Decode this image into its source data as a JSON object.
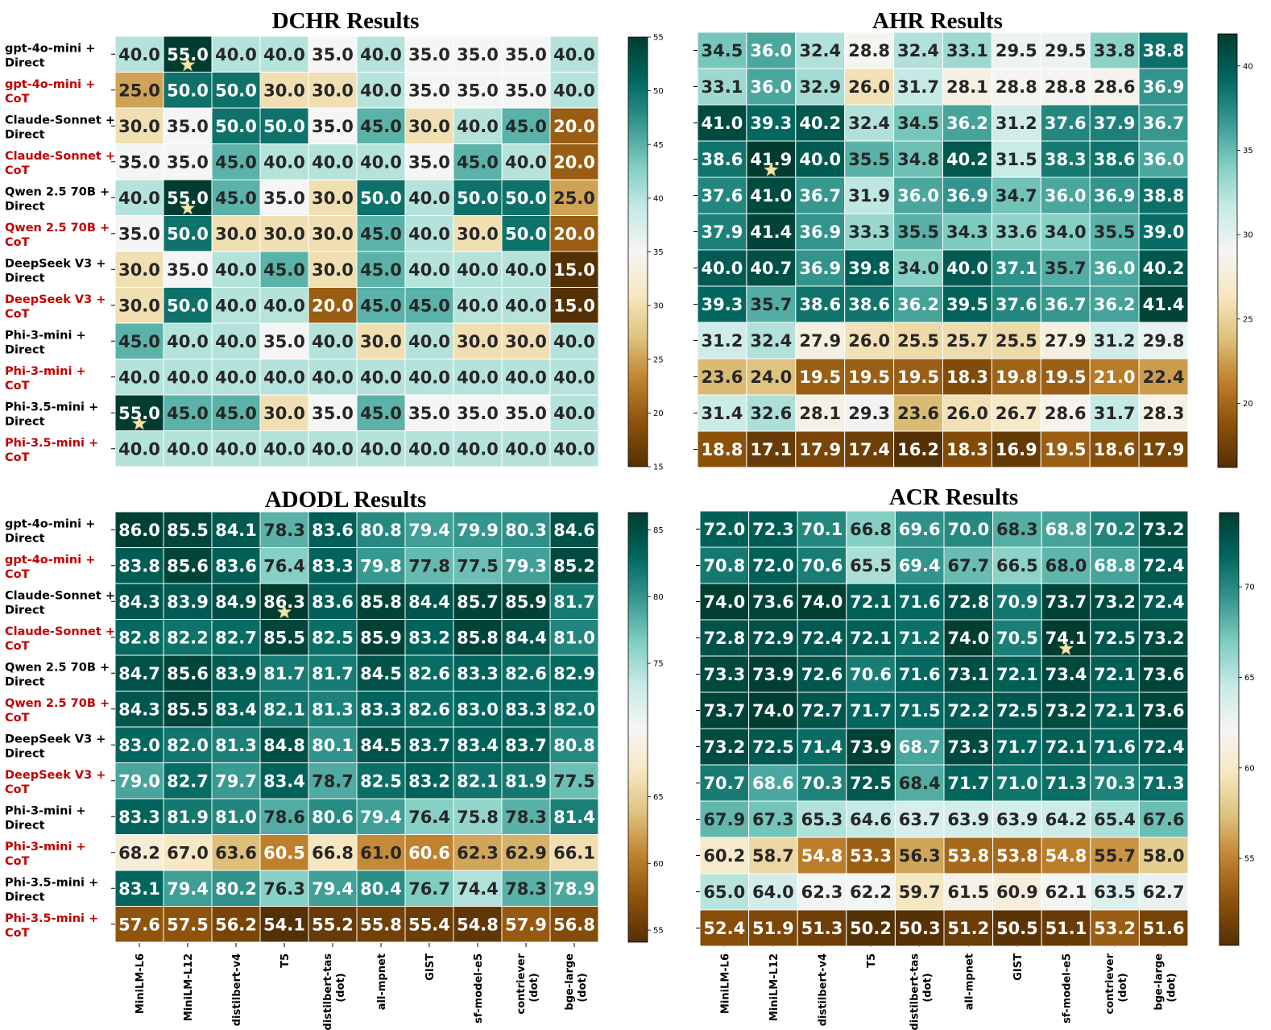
{
  "figure": {
    "row_labels": [
      {
        "line1": "gpt-4o-mini +",
        "line2": "Direct",
        "color": "#000000"
      },
      {
        "line1": "gpt-4o-mini +",
        "line2": "CoT",
        "color": "#c00000"
      },
      {
        "line1": "Claude-Sonnet +",
        "line2": "Direct",
        "color": "#000000"
      },
      {
        "line1": "Claude-Sonnet +",
        "line2": "CoT",
        "color": "#c00000"
      },
      {
        "line1": "Qwen 2.5 70B +",
        "line2": "Direct",
        "color": "#000000"
      },
      {
        "line1": "Qwen 2.5 70B +",
        "line2": "CoT",
        "color": "#c00000"
      },
      {
        "line1": "DeepSeek V3 +",
        "line2": "Direct",
        "color": "#000000"
      },
      {
        "line1": "DeepSeek V3 +",
        "line2": "CoT",
        "color": "#c00000"
      },
      {
        "line1": "Phi-3-mini +",
        "line2": "Direct",
        "color": "#000000"
      },
      {
        "line1": "Phi-3-mini +",
        "line2": "CoT",
        "color": "#c00000"
      },
      {
        "line1": "Phi-3.5-mini +",
        "line2": "Direct",
        "color": "#000000"
      },
      {
        "line1": "Phi-3.5-mini +",
        "line2": "CoT",
        "color": "#c00000"
      }
    ],
    "column_labels": [
      {
        "line1": "MiniLM-L6",
        "line2": ""
      },
      {
        "line1": "MiniLM-L12",
        "line2": ""
      },
      {
        "line1": "distilbert-v4",
        "line2": ""
      },
      {
        "line1": "T5",
        "line2": ""
      },
      {
        "line1": "distilbert-tas",
        "line2": "(dot)"
      },
      {
        "line1": "all-mpnet",
        "line2": ""
      },
      {
        "line1": "GIST",
        "line2": ""
      },
      {
        "line1": "sf-model-e5",
        "line2": ""
      },
      {
        "line1": "contriever",
        "line2": "(dot)"
      },
      {
        "line1": "bge-large",
        "line2": "(dot)"
      }
    ],
    "colormap": [
      "#543005",
      "#8c510a",
      "#bf812d",
      "#dfc27d",
      "#f6e8c3",
      "#f5f5f5",
      "#c7eae5",
      "#80cdc1",
      "#35978f",
      "#01665e",
      "#003c30"
    ]
  },
  "chart_data": [
    {
      "type": "heatmap",
      "title": "DCHR Results",
      "colorbar": {
        "min": 15,
        "max": 55,
        "ticks": [
          15,
          20,
          25,
          30,
          35,
          40,
          45,
          50,
          55
        ]
      },
      "values": [
        [
          40.0,
          55.0,
          40.0,
          40.0,
          35.0,
          40.0,
          35.0,
          35.0,
          35.0,
          40.0
        ],
        [
          25.0,
          50.0,
          50.0,
          30.0,
          30.0,
          40.0,
          35.0,
          35.0,
          35.0,
          40.0
        ],
        [
          30.0,
          35.0,
          50.0,
          50.0,
          35.0,
          45.0,
          30.0,
          40.0,
          45.0,
          20.0
        ],
        [
          35.0,
          35.0,
          45.0,
          40.0,
          40.0,
          40.0,
          35.0,
          45.0,
          40.0,
          20.0
        ],
        [
          40.0,
          55.0,
          45.0,
          35.0,
          30.0,
          50.0,
          40.0,
          50.0,
          50.0,
          25.0
        ],
        [
          35.0,
          50.0,
          30.0,
          30.0,
          30.0,
          45.0,
          40.0,
          30.0,
          50.0,
          20.0
        ],
        [
          30.0,
          35.0,
          40.0,
          45.0,
          30.0,
          45.0,
          40.0,
          40.0,
          40.0,
          15.0
        ],
        [
          30.0,
          50.0,
          40.0,
          40.0,
          20.0,
          45.0,
          45.0,
          40.0,
          40.0,
          15.0
        ],
        [
          45.0,
          40.0,
          40.0,
          35.0,
          40.0,
          30.0,
          40.0,
          30.0,
          30.0,
          40.0
        ],
        [
          40.0,
          40.0,
          40.0,
          40.0,
          40.0,
          40.0,
          40.0,
          40.0,
          40.0,
          40.0
        ],
        [
          55.0,
          45.0,
          45.0,
          30.0,
          35.0,
          45.0,
          35.0,
          35.0,
          35.0,
          40.0
        ],
        [
          40.0,
          40.0,
          40.0,
          40.0,
          40.0,
          40.0,
          40.0,
          40.0,
          40.0,
          40.0
        ]
      ],
      "stars": [
        [
          0,
          1
        ],
        [
          4,
          1
        ],
        [
          10,
          0
        ]
      ]
    },
    {
      "type": "heatmap",
      "title": "AHR Results",
      "colorbar": {
        "min": 16.2,
        "max": 41.9,
        "ticks": [
          20,
          25,
          30,
          35,
          40
        ]
      },
      "values": [
        [
          34.5,
          36.0,
          32.4,
          28.8,
          32.4,
          33.1,
          29.5,
          29.5,
          33.8,
          38.8
        ],
        [
          33.1,
          36.0,
          32.9,
          26.0,
          31.7,
          28.1,
          28.8,
          28.8,
          28.6,
          36.9
        ],
        [
          41.0,
          39.3,
          40.2,
          32.4,
          34.5,
          36.2,
          31.2,
          37.6,
          37.9,
          36.7
        ],
        [
          38.6,
          41.9,
          40.0,
          35.5,
          34.8,
          40.2,
          31.5,
          38.3,
          38.6,
          36.0
        ],
        [
          37.6,
          41.0,
          36.7,
          31.9,
          36.0,
          36.9,
          34.7,
          36.0,
          36.9,
          38.8
        ],
        [
          37.9,
          41.4,
          36.9,
          33.3,
          35.5,
          34.3,
          33.6,
          34.0,
          35.5,
          39.0
        ],
        [
          40.0,
          40.7,
          36.9,
          39.8,
          34.0,
          40.0,
          37.1,
          35.7,
          36.0,
          40.2
        ],
        [
          39.3,
          35.7,
          38.6,
          38.6,
          36.2,
          39.5,
          37.6,
          36.7,
          36.2,
          41.4
        ],
        [
          31.2,
          32.4,
          27.9,
          26.0,
          25.5,
          25.7,
          25.5,
          27.9,
          31.2,
          29.8
        ],
        [
          23.6,
          24.0,
          19.5,
          19.5,
          19.5,
          18.3,
          19.8,
          19.5,
          21.0,
          22.4
        ],
        [
          31.4,
          32.6,
          28.1,
          29.3,
          23.6,
          26.0,
          26.7,
          28.6,
          31.7,
          28.3
        ],
        [
          18.8,
          17.1,
          17.9,
          17.4,
          16.2,
          18.3,
          16.9,
          19.5,
          18.6,
          17.9
        ]
      ],
      "stars": [
        [
          3,
          1
        ]
      ]
    },
    {
      "type": "heatmap",
      "title": "ADODL Results",
      "colorbar": {
        "min": 54.1,
        "max": 86.3,
        "ticks": [
          55,
          60,
          65,
          75,
          80,
          85
        ]
      },
      "values": [
        [
          86.0,
          85.5,
          84.1,
          78.3,
          83.6,
          80.8,
          79.4,
          79.9,
          80.3,
          84.6
        ],
        [
          83.8,
          85.6,
          83.6,
          76.4,
          83.3,
          79.8,
          77.8,
          77.5,
          79.3,
          85.2
        ],
        [
          84.3,
          83.9,
          84.9,
          86.3,
          83.6,
          85.8,
          84.4,
          85.7,
          85.9,
          81.7
        ],
        [
          82.8,
          82.2,
          82.7,
          85.5,
          82.5,
          85.9,
          83.2,
          85.8,
          84.4,
          81.0
        ],
        [
          84.7,
          85.6,
          83.9,
          81.7,
          81.7,
          84.5,
          82.6,
          83.3,
          82.6,
          82.9
        ],
        [
          84.3,
          85.5,
          83.4,
          82.1,
          81.3,
          83.3,
          82.6,
          83.0,
          83.3,
          82.0
        ],
        [
          83.0,
          82.0,
          81.3,
          84.8,
          80.1,
          84.5,
          83.7,
          83.4,
          83.7,
          80.8
        ],
        [
          79.0,
          82.7,
          79.7,
          83.4,
          78.7,
          82.5,
          83.2,
          82.1,
          81.9,
          77.5
        ],
        [
          83.3,
          81.9,
          81.0,
          78.6,
          80.6,
          79.4,
          76.4,
          75.8,
          78.3,
          81.4
        ],
        [
          68.2,
          67.0,
          63.6,
          60.5,
          66.8,
          61.0,
          60.6,
          62.3,
          62.9,
          66.1
        ],
        [
          83.1,
          79.4,
          80.2,
          76.3,
          79.4,
          80.4,
          76.7,
          74.4,
          78.3,
          78.9
        ],
        [
          57.6,
          57.5,
          56.2,
          54.1,
          55.2,
          55.8,
          55.4,
          54.8,
          57.9,
          56.8
        ]
      ],
      "stars": [
        [
          2,
          3
        ]
      ]
    },
    {
      "type": "heatmap",
      "title": "ACR Results",
      "colorbar": {
        "min": 50.2,
        "max": 74.1,
        "ticks": [
          55,
          60,
          65,
          70
        ]
      },
      "values": [
        [
          72.0,
          72.3,
          70.1,
          66.8,
          69.6,
          70.0,
          68.3,
          68.8,
          70.2,
          73.2
        ],
        [
          70.8,
          72.0,
          70.6,
          65.5,
          69.4,
          67.7,
          66.5,
          68.0,
          68.8,
          72.4
        ],
        [
          74.0,
          73.6,
          74.0,
          72.1,
          71.6,
          72.8,
          70.9,
          73.7,
          73.2,
          72.4
        ],
        [
          72.8,
          72.9,
          72.4,
          72.1,
          71.2,
          74.0,
          70.5,
          74.1,
          72.5,
          73.2
        ],
        [
          73.3,
          73.9,
          72.6,
          70.6,
          71.6,
          73.1,
          72.1,
          73.4,
          72.1,
          73.6
        ],
        [
          73.7,
          74.0,
          72.7,
          71.7,
          71.5,
          72.2,
          72.5,
          73.2,
          72.1,
          73.6
        ],
        [
          73.2,
          72.5,
          71.4,
          73.9,
          68.7,
          73.3,
          71.7,
          72.1,
          71.6,
          72.4
        ],
        [
          70.7,
          68.6,
          70.3,
          72.5,
          68.4,
          71.7,
          71.0,
          71.3,
          70.3,
          71.3
        ],
        [
          67.9,
          67.3,
          65.3,
          64.6,
          63.7,
          63.9,
          63.9,
          64.2,
          65.4,
          67.6
        ],
        [
          60.2,
          58.7,
          54.8,
          53.3,
          56.3,
          53.8,
          53.8,
          54.8,
          55.7,
          58.0
        ],
        [
          65.0,
          64.0,
          62.3,
          62.2,
          59.7,
          61.5,
          60.9,
          62.1,
          63.5,
          62.7
        ],
        [
          52.4,
          51.9,
          51.3,
          50.2,
          50.3,
          51.2,
          50.5,
          51.1,
          53.2,
          51.6
        ]
      ],
      "stars": [
        [
          3,
          7
        ]
      ]
    }
  ]
}
